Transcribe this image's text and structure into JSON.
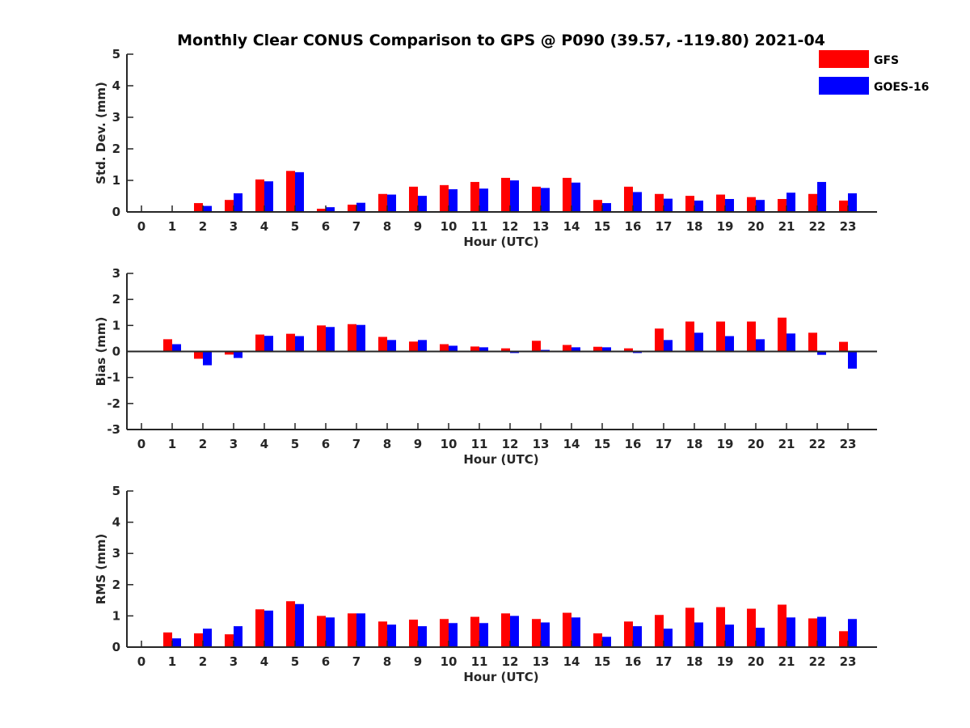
{
  "chart_data": {
    "type": "bar",
    "title": "Monthly Clear CONUS Comparison to GPS @ P090 (39.57, -119.80) 2021-04",
    "legend": {
      "placement": "top-right",
      "entries": [
        {
          "name": "GFS",
          "color": "#ff0000"
        },
        {
          "name": "GOES-16",
          "color": "#0000ff"
        }
      ]
    },
    "categories": [
      "0",
      "1",
      "2",
      "3",
      "4",
      "5",
      "6",
      "7",
      "8",
      "9",
      "10",
      "11",
      "12",
      "13",
      "14",
      "15",
      "16",
      "17",
      "18",
      "19",
      "20",
      "21",
      "22",
      "23"
    ],
    "panels": [
      {
        "id": "std",
        "xlabel": "Hour (UTC)",
        "ylabel": "Std. Dev. (mm)",
        "ylim": [
          0,
          5
        ],
        "yticks": [
          0,
          1,
          2,
          3,
          4,
          5
        ],
        "series": [
          {
            "name": "GFS",
            "values": [
              null,
              null,
              0.28,
              0.38,
              1.03,
              1.3,
              0.1,
              0.23,
              0.57,
              0.8,
              0.85,
              0.95,
              1.08,
              0.8,
              1.08,
              0.38,
              0.8,
              0.57,
              0.51,
              0.55,
              0.47,
              0.41,
              0.57,
              0.36
            ]
          },
          {
            "name": "GOES-16",
            "values": [
              null,
              null,
              0.19,
              0.59,
              0.97,
              1.26,
              0.15,
              0.29,
              0.55,
              0.51,
              0.72,
              0.74,
              1.0,
              0.76,
              0.93,
              0.28,
              0.63,
              0.42,
              0.36,
              0.41,
              0.38,
              0.61,
              0.95,
              0.59
            ]
          }
        ]
      },
      {
        "id": "bias",
        "xlabel": "Hour (UTC)",
        "ylabel": "Bias (mm)",
        "ylim": [
          -3,
          3
        ],
        "yticks": [
          -3,
          -2,
          -1,
          0,
          1,
          2,
          3
        ],
        "series": [
          {
            "name": "GFS",
            "values": [
              null,
              0.47,
              -0.28,
              -0.12,
              0.65,
              0.68,
              1.0,
              1.05,
              0.56,
              0.38,
              0.28,
              0.19,
              0.12,
              0.41,
              0.25,
              0.18,
              0.12,
              0.88,
              1.15,
              1.15,
              1.15,
              1.3,
              0.72,
              0.37
            ]
          },
          {
            "name": "GOES-16",
            "values": [
              null,
              0.28,
              -0.53,
              -0.25,
              0.6,
              0.59,
              0.94,
              1.02,
              0.44,
              0.44,
              0.22,
              0.16,
              -0.06,
              0.06,
              0.16,
              0.16,
              -0.06,
              0.44,
              0.72,
              0.59,
              0.47,
              0.69,
              -0.13,
              -0.66
            ]
          }
        ]
      },
      {
        "id": "rms",
        "xlabel": "Hour (UTC)",
        "ylabel": "RMS (mm)",
        "ylim": [
          0,
          5
        ],
        "yticks": [
          0,
          1,
          2,
          3,
          4,
          5
        ],
        "series": [
          {
            "name": "GFS",
            "values": [
              null,
              0.47,
              0.44,
              0.41,
              1.21,
              1.47,
              1.0,
              1.08,
              0.82,
              0.88,
              0.9,
              0.97,
              1.08,
              0.9,
              1.1,
              0.44,
              0.82,
              1.03,
              1.26,
              1.28,
              1.23,
              1.36,
              0.92,
              0.51
            ]
          },
          {
            "name": "GOES-16",
            "values": [
              null,
              0.28,
              0.59,
              0.67,
              1.17,
              1.38,
              0.95,
              1.08,
              0.72,
              0.67,
              0.77,
              0.77,
              1.0,
              0.79,
              0.95,
              0.33,
              0.67,
              0.59,
              0.79,
              0.72,
              0.62,
              0.95,
              0.97,
              0.9
            ]
          }
        ]
      }
    ]
  }
}
